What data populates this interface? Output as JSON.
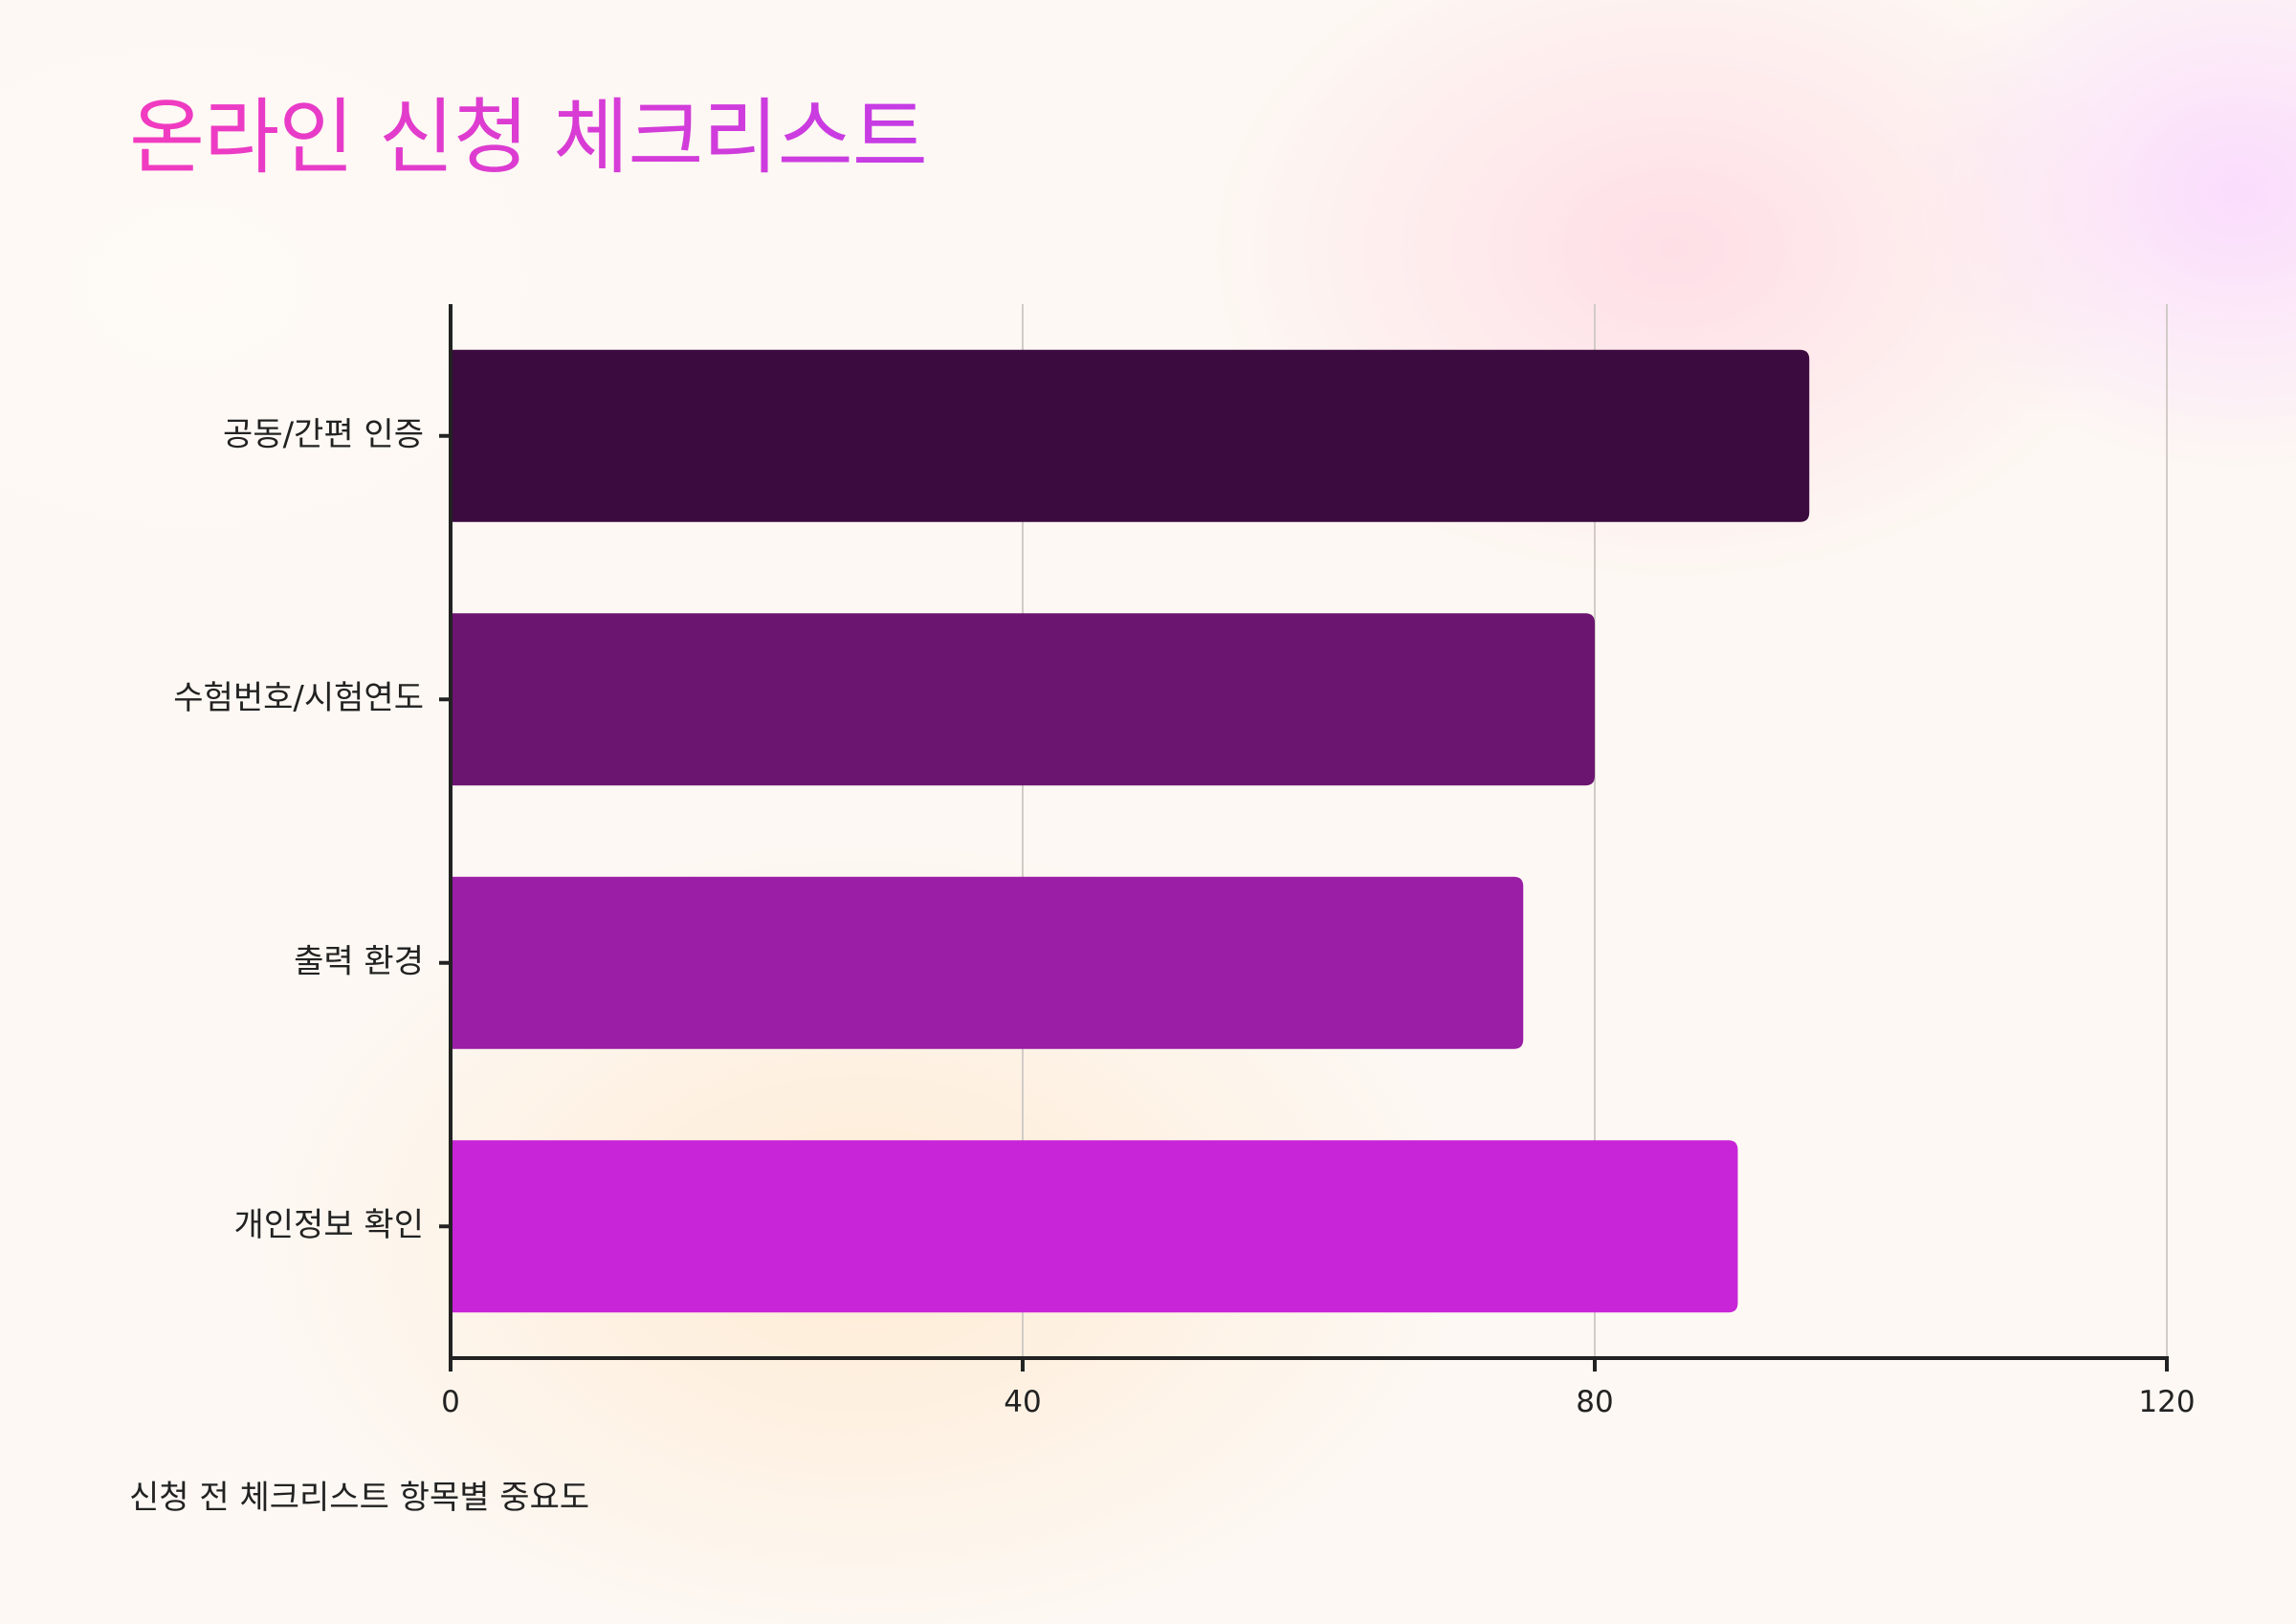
{
  "chart_data": {
    "type": "bar",
    "orientation": "horizontal",
    "title": "온라인 신청 체크리스트",
    "caption": "신청 전 체크리스트 항목별 중요도",
    "categories": [
      "공동/간편 인증",
      "수험번호/시험연도",
      "출력 환경",
      "개인정보 확인"
    ],
    "values": [
      95,
      80,
      75,
      90
    ],
    "colors": [
      "#3b0a3f",
      "#6b1470",
      "#9a1ea6",
      "#c825d8"
    ],
    "xlim": [
      0,
      120
    ],
    "xticks": [
      0,
      40,
      80,
      120
    ],
    "xlabel": "",
    "ylabel": "",
    "grid": true,
    "legend": false
  }
}
